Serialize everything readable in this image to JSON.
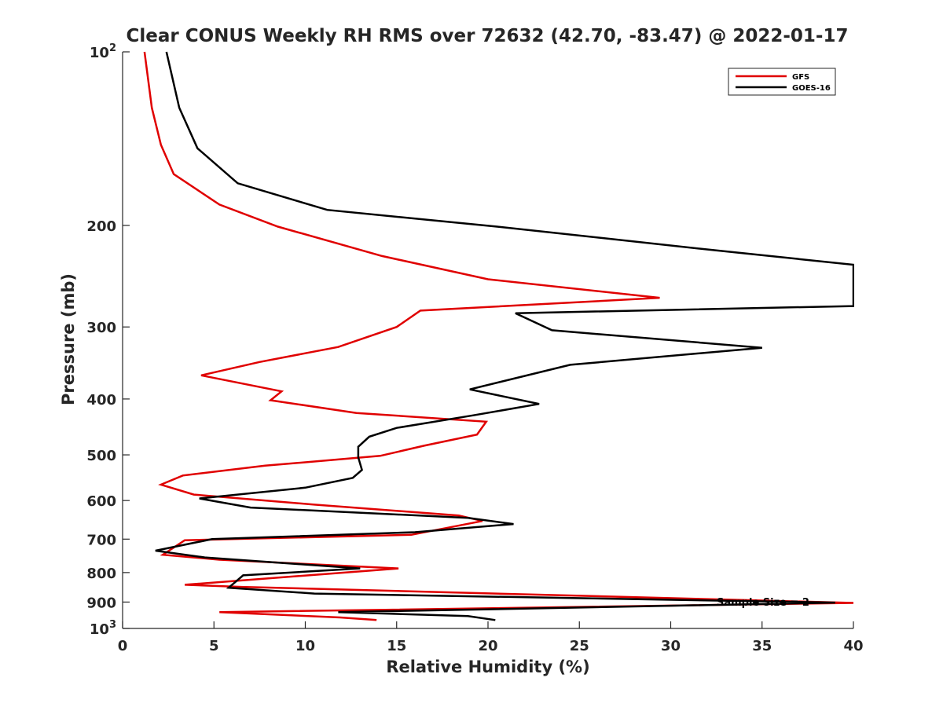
{
  "chart_data": {
    "type": "line",
    "title": "Clear CONUS Weekly RH RMS over 72632 (42.70, -83.47) @ 2022-01-17",
    "xlabel": "Relative Humidity (%)",
    "ylabel": "Pressure (mb)",
    "xlim": [
      0,
      40
    ],
    "ylim": [
      100,
      1000
    ],
    "y_scale": "log",
    "y_reversed": true,
    "x_ticks": [
      "0",
      "5",
      "10",
      "15",
      "20",
      "25",
      "30",
      "35",
      "40"
    ],
    "x_tick_values": [
      0,
      5,
      10,
      15,
      20,
      25,
      30,
      35,
      40
    ],
    "y_ticks": [
      {
        "value": 100,
        "base": "10",
        "exp": "2"
      },
      {
        "value": 200,
        "base": "200",
        "exp": ""
      },
      {
        "value": 300,
        "base": "300",
        "exp": ""
      },
      {
        "value": 400,
        "base": "400",
        "exp": ""
      },
      {
        "value": 500,
        "base": "500",
        "exp": ""
      },
      {
        "value": 600,
        "base": "600",
        "exp": ""
      },
      {
        "value": 700,
        "base": "700",
        "exp": ""
      },
      {
        "value": 800,
        "base": "800",
        "exp": ""
      },
      {
        "value": 900,
        "base": "900",
        "exp": ""
      },
      {
        "value": 1000,
        "base": "10",
        "exp": "3"
      }
    ],
    "grid": false,
    "legend_position": "top-right",
    "annotation": "Sample Size = 2",
    "series": [
      {
        "name": "GFS",
        "color": "#e00000",
        "points": [
          [
            1.2,
            100
          ],
          [
            1.6,
            125
          ],
          [
            2.1,
            145
          ],
          [
            2.8,
            163
          ],
          [
            5.3,
            184
          ],
          [
            8.5,
            201
          ],
          [
            14.2,
            226
          ],
          [
            20.0,
            248
          ],
          [
            29.4,
            267
          ],
          [
            16.3,
            281
          ],
          [
            15.0,
            300
          ],
          [
            11.8,
            325
          ],
          [
            7.5,
            345
          ],
          [
            4.3,
            364
          ],
          [
            8.7,
            388
          ],
          [
            8.1,
            402
          ],
          [
            12.8,
            423
          ],
          [
            19.9,
            438
          ],
          [
            19.4,
            461
          ],
          [
            16.5,
            482
          ],
          [
            14.1,
            502
          ],
          [
            7.8,
            522
          ],
          [
            3.3,
            543
          ],
          [
            2.1,
            563
          ],
          [
            3.9,
            586
          ],
          [
            10.5,
            610
          ],
          [
            18.4,
            637
          ],
          [
            19.7,
            651
          ],
          [
            15.8,
            688
          ],
          [
            3.4,
            703
          ],
          [
            2.2,
            745
          ],
          [
            5.3,
            760
          ],
          [
            15.1,
            787
          ],
          [
            3.4,
            840
          ],
          [
            6.5,
            847
          ],
          [
            40.0,
            903
          ],
          [
            5.3,
            937
          ],
          [
            11.9,
            957
          ],
          [
            13.9,
            967
          ]
        ]
      },
      {
        "name": "GOES-16",
        "color": "#000000",
        "points": [
          [
            2.4,
            100
          ],
          [
            3.1,
            125
          ],
          [
            4.1,
            147
          ],
          [
            6.3,
            169
          ],
          [
            11.2,
            188
          ],
          [
            20.5,
            201
          ],
          [
            32.5,
            221
          ],
          [
            40.0,
            234
          ],
          [
            40.0,
            276
          ],
          [
            21.5,
            284
          ],
          [
            23.5,
            304
          ],
          [
            35.0,
            326
          ],
          [
            24.5,
            349
          ],
          [
            19.0,
            385
          ],
          [
            22.8,
            408
          ],
          [
            19.2,
            427
          ],
          [
            15.0,
            449
          ],
          [
            13.5,
            465
          ],
          [
            12.9,
            484
          ],
          [
            12.9,
            505
          ],
          [
            13.1,
            531
          ],
          [
            12.6,
            548
          ],
          [
            10.0,
            570
          ],
          [
            4.2,
            595
          ],
          [
            7.0,
            617
          ],
          [
            18.9,
            643
          ],
          [
            21.4,
            659
          ],
          [
            16.0,
            681
          ],
          [
            4.9,
            700
          ],
          [
            1.8,
            733
          ],
          [
            4.5,
            753
          ],
          [
            13.0,
            787
          ],
          [
            6.6,
            809
          ],
          [
            5.8,
            850
          ],
          [
            10.5,
            870
          ],
          [
            39.0,
            902
          ],
          [
            11.8,
            937
          ],
          [
            18.9,
            952
          ],
          [
            20.4,
            967
          ]
        ]
      }
    ]
  }
}
